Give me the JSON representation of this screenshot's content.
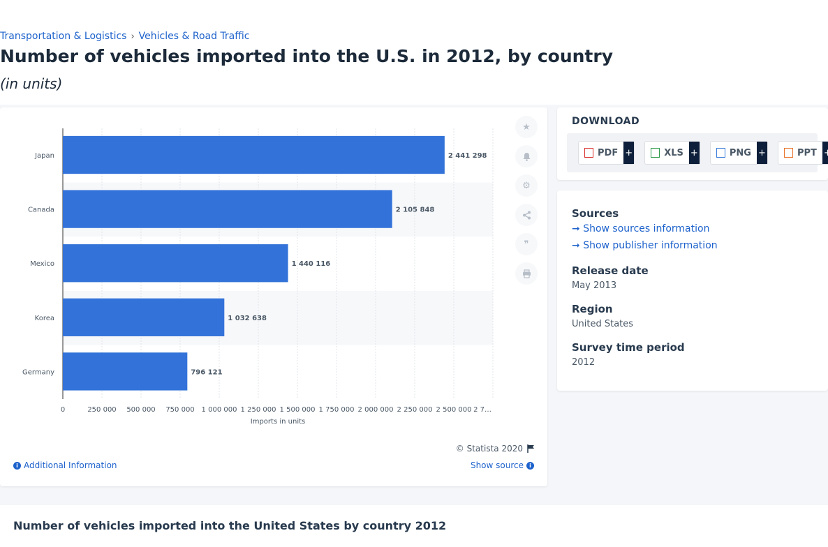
{
  "breadcrumb": {
    "items": [
      "Transportation & Logistics",
      "Vehicles & Road Traffic"
    ],
    "separator": "›"
  },
  "page": {
    "title": "Number of vehicles imported into the U.S. in 2012, by country",
    "subtitle": "(in units)"
  },
  "chart_data": {
    "type": "bar",
    "orientation": "horizontal",
    "categories": [
      "Japan",
      "Canada",
      "Mexico",
      "Korea",
      "Germany"
    ],
    "values": [
      2441298,
      2105848,
      1440116,
      1032638,
      796121
    ],
    "value_labels": [
      "2 441 298",
      "2 105 848",
      "1 440 116",
      "1 032 638",
      "796 121"
    ],
    "xlabel": "Imports in units",
    "xlim": [
      0,
      2750000
    ],
    "x_ticks": [
      0,
      250000,
      500000,
      750000,
      1000000,
      1250000,
      1500000,
      1750000,
      2000000,
      2250000,
      2500000,
      2750000
    ],
    "x_tick_labels": [
      "0",
      "250 000",
      "500 000",
      "750 000",
      "1 000 000",
      "1 250 000",
      "1 500 000",
      "1 750 000",
      "2 000 000",
      "2 250 000",
      "2 500 000",
      "2 7…"
    ],
    "bar_color": "#3373d9",
    "grid": true
  },
  "chart_footer": {
    "copyright": "© Statista 2020",
    "additional_info": "Additional Information",
    "show_source": "Show source"
  },
  "tools": [
    "star-icon",
    "bell-icon",
    "gear-icon",
    "share-icon",
    "quote-icon",
    "print-icon"
  ],
  "download": {
    "title": "DOWNLOAD",
    "buttons": [
      {
        "label": "PDF",
        "color": "#d9302c"
      },
      {
        "label": "XLS",
        "color": "#2e9b4a"
      },
      {
        "label": "PNG",
        "color": "#3a7dd9"
      },
      {
        "label": "PPT",
        "color": "#e8752c"
      }
    ],
    "plus": "+"
  },
  "meta": {
    "sources_label": "Sources",
    "show_sources": "Show sources information",
    "show_publisher": "Show publisher information",
    "release_label": "Release date",
    "release_value": "May 2013",
    "region_label": "Region",
    "region_value": "United States",
    "period_label": "Survey time period",
    "period_value": "2012"
  },
  "bottom": {
    "title": "Number of vehicles imported into the United States by country 2012"
  }
}
